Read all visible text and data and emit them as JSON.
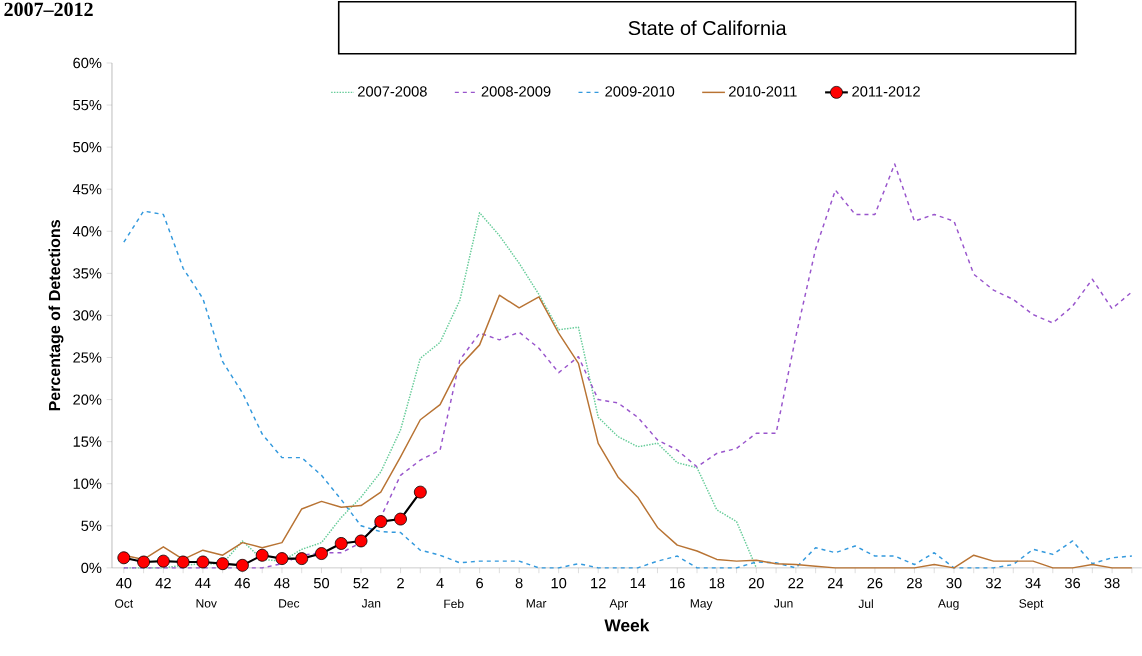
{
  "chart_data": {
    "type": "line",
    "title": "2007–2012",
    "subtitle": "State of California",
    "xlabel": "Week",
    "ylabel": "Percentage of Detections",
    "categories": [
      "40",
      null,
      "42",
      null,
      "44",
      null,
      "46",
      null,
      "48",
      null,
      "50",
      null,
      "52",
      null,
      "2",
      null,
      "4",
      null,
      "6",
      null,
      "8",
      null,
      "10",
      null,
      "12",
      null,
      "14",
      null,
      "16",
      null,
      "18",
      null,
      "20",
      null,
      "22",
      null,
      "24",
      null,
      "26",
      null,
      "28",
      null,
      "30",
      null,
      "32",
      null,
      "34",
      null,
      "36",
      null,
      "38",
      null
    ],
    "ylim": [
      0,
      60
    ],
    "yticks": [
      {
        "value": 0,
        "label": "0%"
      },
      {
        "value": 5,
        "label": "5%"
      },
      {
        "value": 10,
        "label": "10%"
      },
      {
        "value": 15,
        "label": "15%"
      },
      {
        "value": 20,
        "label": "20%"
      },
      {
        "value": 25,
        "label": "25%"
      },
      {
        "value": 30,
        "label": "30%"
      },
      {
        "value": 35,
        "label": "35%"
      },
      {
        "value": 40,
        "label": "40%"
      },
      {
        "value": 45,
        "label": "45%"
      },
      {
        "value": 50,
        "label": "50%"
      },
      {
        "value": 55,
        "label": "55%"
      },
      {
        "value": 60,
        "label": "60%"
      }
    ],
    "grid": false,
    "legend": "top",
    "series": [
      {
        "name": "2007-2008",
        "color": "#66cc99",
        "line_style": "dotted",
        "marker": "none",
        "values": [
          0,
          0,
          0,
          0.3,
          0.5,
          0.5,
          3.2,
          1.0,
          0.8,
          2.2,
          3.0,
          6.0,
          8.4,
          11.4,
          16.4,
          24.9,
          26.8,
          31.8,
          42.2,
          39.5,
          36.2,
          32.5,
          28.3,
          28.6,
          17.9,
          15.6,
          14.4,
          14.8,
          12.5,
          11.9,
          6.9,
          5.5,
          0,
          null,
          null,
          null,
          null,
          null,
          null,
          null,
          null,
          null,
          null,
          null,
          null,
          null,
          null,
          null,
          null,
          null,
          null,
          null
        ]
      },
      {
        "name": "2008-2009",
        "color": "#9955cc",
        "line_style": "dashed",
        "marker": "none",
        "values": [
          0,
          0,
          0,
          0,
          0,
          0,
          0,
          0,
          0.5,
          1.5,
          1.8,
          1.8,
          3.0,
          6.0,
          11.0,
          12.8,
          14.0,
          24.7,
          27.9,
          27.1,
          28.0,
          26.1,
          23.2,
          25.1,
          20.0,
          19.6,
          17.9,
          15.2,
          14.0,
          12.0,
          13.6,
          14.2,
          16.0,
          16.0,
          27.5,
          37.9,
          44.9,
          42.0,
          42.0,
          48.0,
          41.2,
          42.0,
          41.2,
          34.9,
          33.0,
          31.9,
          30.1,
          29.1,
          31.1,
          34.3,
          30.8,
          32.8
        ]
      },
      {
        "name": "2009-2010",
        "color": "#3399dd",
        "line_style": "dashed",
        "marker": "none",
        "values": [
          38.7,
          42.4,
          42.0,
          35.6,
          32.0,
          24.5,
          20.8,
          15.9,
          13.1,
          13.1,
          11.0,
          8.1,
          5.0,
          4.3,
          4.2,
          2.1,
          1.5,
          0.6,
          0.8,
          0.8,
          0.8,
          0,
          0,
          0.5,
          0,
          0,
          0,
          0.8,
          1.4,
          0,
          0,
          0,
          0.7,
          0.6,
          0,
          2.4,
          1.8,
          2.6,
          1.4,
          1.4,
          0.4,
          1.8,
          0,
          0,
          0,
          0.4,
          2.2,
          1.6,
          3.2,
          0.5,
          1.2,
          1.4
        ]
      },
      {
        "name": "2010-2011",
        "color": "#b87333",
        "line_style": "solid",
        "marker": "none",
        "values": [
          1.5,
          1.0,
          2.5,
          1.0,
          2.1,
          1.5,
          3.0,
          2.4,
          3.0,
          7.0,
          7.9,
          7.2,
          7.4,
          9.0,
          13.2,
          17.6,
          19.4,
          24.0,
          26.5,
          32.4,
          30.9,
          32.2,
          27.9,
          24.3,
          14.8,
          10.8,
          8.4,
          4.8,
          2.7,
          2.0,
          1.0,
          0.8,
          0.9,
          0.5,
          0.4,
          0.2,
          0,
          0,
          0,
          0,
          0,
          0.4,
          0,
          1.5,
          0.8,
          0.8,
          0.8,
          0,
          0,
          0.4,
          0,
          0
        ]
      },
      {
        "name": "2011-2012",
        "color": "#ff0000",
        "line_style": "solid",
        "marker": "circle",
        "values": [
          1.2,
          0.7,
          0.8,
          0.7,
          0.7,
          0.5,
          0.3,
          1.5,
          1.1,
          1.1,
          1.7,
          2.9,
          3.2,
          5.5,
          5.8,
          9.0,
          null,
          null,
          null,
          null,
          null,
          null,
          null,
          null,
          null,
          null,
          null,
          null,
          null,
          null,
          null,
          null,
          null,
          null,
          null,
          null,
          null,
          null,
          null,
          null,
          null,
          null,
          null,
          null,
          null,
          null,
          null,
          null,
          null,
          null,
          null,
          null
        ]
      }
    ],
    "annotations": [
      "Oct",
      "Nov",
      "Dec",
      "Jan",
      "Feb",
      "Mar",
      "Apr",
      "May",
      "Jun",
      "Jul",
      "Aug",
      "Sept"
    ]
  }
}
